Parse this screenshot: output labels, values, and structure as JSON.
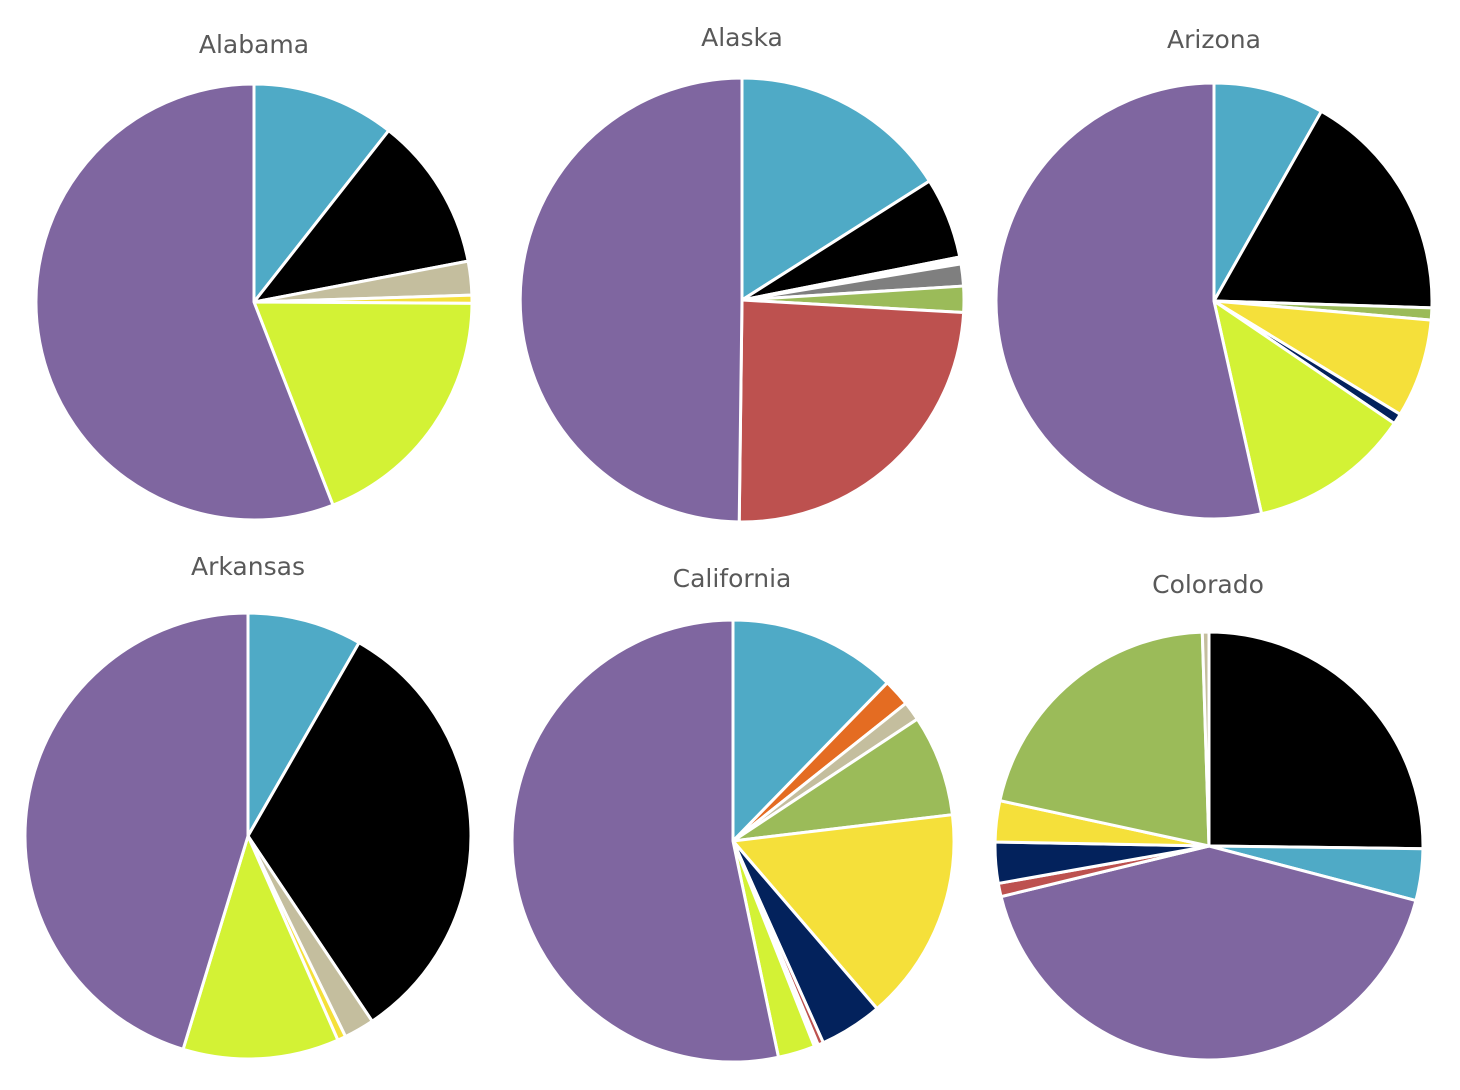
{
  "chart_data": [
    {
      "type": "pie",
      "title": "Alabama",
      "slices": [
        {
          "value": 10.6,
          "color": "#4FAAC6"
        },
        {
          "value": 11.4,
          "color": "#000000"
        },
        {
          "value": 2.5,
          "color": "#C4BE9E"
        },
        {
          "value": 0.6,
          "color": "#F5E03A"
        },
        {
          "value": 19.0,
          "color": "#D3F235"
        },
        {
          "value": 55.9,
          "color": "#7F66A0"
        }
      ]
    },
    {
      "type": "pie",
      "title": "Alaska",
      "slices": [
        {
          "value": 16.0,
          "color": "#4FAAC6"
        },
        {
          "value": 5.9,
          "color": "#000000"
        },
        {
          "value": 0.5,
          "color": "#FFFFFF"
        },
        {
          "value": 1.6,
          "color": "#7F7F7F"
        },
        {
          "value": 1.9,
          "color": "#9BBB59"
        },
        {
          "value": 24.3,
          "color": "#BD514F"
        },
        {
          "value": 49.8,
          "color": "#7F66A0"
        }
      ]
    },
    {
      "type": "pie",
      "title": "Arizona",
      "slices": [
        {
          "value": 8.2,
          "color": "#4FAAC6"
        },
        {
          "value": 17.3,
          "color": "#000000"
        },
        {
          "value": 0.9,
          "color": "#9BBB59"
        },
        {
          "value": 7.3,
          "color": "#F5E03A"
        },
        {
          "value": 0.8,
          "color": "#03225C"
        },
        {
          "value": 12.0,
          "color": "#D3F235"
        },
        {
          "value": 53.5,
          "color": "#7F66A0"
        }
      ]
    },
    {
      "type": "pie",
      "title": "Arkansas",
      "slices": [
        {
          "value": 8.3,
          "color": "#4FAAC6"
        },
        {
          "value": 32.3,
          "color": "#000000"
        },
        {
          "value": 2.2,
          "color": "#C4BE9E"
        },
        {
          "value": 0.6,
          "color": "#F5E03A"
        },
        {
          "value": 11.3,
          "color": "#D3F235"
        },
        {
          "value": 45.3,
          "color": "#7F66A0"
        }
      ]
    },
    {
      "type": "pie",
      "title": "California",
      "slices": [
        {
          "value": 12.3,
          "color": "#4FAAC6"
        },
        {
          "value": 2.0,
          "color": "#E46C22"
        },
        {
          "value": 1.4,
          "color": "#C4BE9E"
        },
        {
          "value": 7.4,
          "color": "#9BBB59"
        },
        {
          "value": 15.6,
          "color": "#F5E03A"
        },
        {
          "value": 4.6,
          "color": "#03225C"
        },
        {
          "value": 0.4,
          "color": "#BD514F"
        },
        {
          "value": 0.3,
          "color": "#FFFFFF"
        },
        {
          "value": 2.7,
          "color": "#D3F235"
        },
        {
          "value": 53.3,
          "color": "#7F66A0"
        }
      ]
    },
    {
      "type": "pie",
      "title": "Colorado",
      "slices": [
        {
          "value": 25.2,
          "color": "#000000"
        },
        {
          "value": 3.9,
          "color": "#4FAAC6"
        },
        {
          "value": 42.1,
          "color": "#7F66A0"
        },
        {
          "value": 1.0,
          "color": "#BD514F"
        },
        {
          "value": 3.1,
          "color": "#03225C"
        },
        {
          "value": 3.1,
          "color": "#F5E03A"
        },
        {
          "value": 21.1,
          "color": "#9BBB59"
        },
        {
          "value": 0.5,
          "color": "#C4BE9E"
        }
      ]
    }
  ]
}
